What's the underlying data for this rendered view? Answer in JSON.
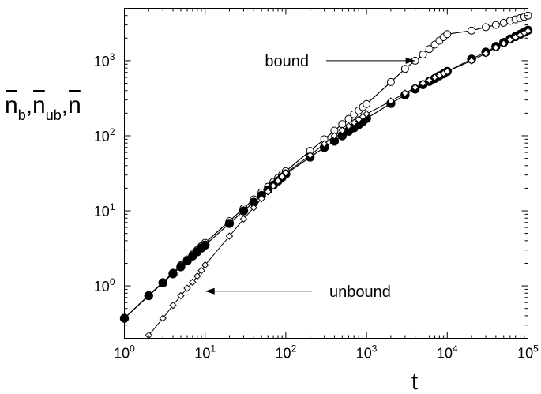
{
  "chart_data": {
    "type": "line",
    "xscale": "log",
    "yscale": "log",
    "xlim": [
      1,
      100000
    ],
    "ylim": [
      0.2,
      5000
    ],
    "xlabel": "t",
    "ylabel_parts": [
      {
        "base": "n",
        "sub": "b"
      },
      {
        "base": "n",
        "sub": "ub"
      },
      {
        "base": "n",
        "sub": ""
      }
    ],
    "ylabel_separator": ",",
    "x_ticks": [
      {
        "value": 1,
        "base": "10",
        "exp": "0"
      },
      {
        "value": 10,
        "base": "10",
        "exp": "1"
      },
      {
        "value": 100,
        "base": "10",
        "exp": "2"
      },
      {
        "value": 1000,
        "base": "10",
        "exp": "3"
      },
      {
        "value": 10000,
        "base": "10",
        "exp": "4"
      },
      {
        "value": 100000,
        "base": "10",
        "exp": "5"
      }
    ],
    "y_ticks": [
      {
        "value": 1,
        "base": "10",
        "exp": "0"
      },
      {
        "value": 10,
        "base": "10",
        "exp": "1"
      },
      {
        "value": 100,
        "base": "10",
        "exp": "2"
      },
      {
        "value": 1000,
        "base": "10",
        "exp": "3"
      }
    ],
    "grid": false,
    "annotations": [
      {
        "text": "bound",
        "x": 55,
        "y": 1000,
        "arrow_x": 4000,
        "arrow_y": 1000
      },
      {
        "text": "unbound",
        "x": 2000,
        "y": 0.85,
        "arrow_x": 10,
        "arrow_y": 0.85
      }
    ],
    "series": [
      {
        "marker": "open-circle",
        "x": [
          1,
          2,
          3,
          4,
          5,
          6,
          7,
          8,
          9,
          10,
          20,
          30,
          40,
          50,
          60,
          70,
          80,
          90,
          100,
          200,
          300,
          400,
          500,
          600,
          700,
          800,
          900,
          1000,
          2000,
          3000,
          4000,
          5000,
          6000,
          7000,
          8000,
          9000,
          10000,
          20000,
          30000,
          40000,
          50000,
          60000,
          70000,
          80000,
          90000,
          100000
        ],
        "y": [
          0.37,
          0.75,
          1.12,
          1.5,
          1.88,
          2.25,
          2.63,
          3.0,
          3.38,
          3.75,
          7.3,
          10.8,
          14.2,
          17.6,
          20.9,
          24.2,
          27.4,
          30.6,
          33.8,
          63,
          90,
          117,
          143,
          168,
          193,
          217,
          241,
          265,
          520,
          780,
          1000,
          1210,
          1430,
          1640,
          1850,
          2060,
          2260,
          2520,
          2800,
          3000,
          3200,
          3400,
          3550,
          3700,
          3850,
          4000
        ]
      },
      {
        "marker": "filled-circle",
        "x": [
          1,
          2,
          3,
          4,
          5,
          6,
          7,
          8,
          9,
          10,
          20,
          30,
          40,
          50,
          60,
          70,
          80,
          90,
          100,
          200,
          300,
          400,
          500,
          600,
          700,
          800,
          900,
          1000,
          2000,
          3000,
          4000,
          5000,
          6000,
          7000,
          8000,
          9000,
          10000,
          20000,
          30000,
          40000,
          50000,
          60000,
          70000,
          80000,
          90000,
          100000
        ],
        "y": [
          0.37,
          0.74,
          1.1,
          1.45,
          1.8,
          2.15,
          2.5,
          2.85,
          3.2,
          3.5,
          6.8,
          10,
          13,
          16,
          19,
          22,
          25,
          28,
          31,
          52,
          70,
          85,
          100,
          115,
          128,
          141,
          155,
          170,
          270,
          350,
          420,
          480,
          530,
          580,
          630,
          670,
          720,
          1050,
          1300,
          1550,
          1750,
          1950,
          2100,
          2250,
          2400,
          2550
        ]
      },
      {
        "marker": "open-diamond",
        "x": [
          2,
          3,
          4,
          5,
          6,
          7,
          8,
          9,
          10,
          20,
          30,
          40,
          50,
          60,
          70,
          80,
          90,
          100,
          200,
          300,
          400,
          500,
          600,
          700,
          800,
          900,
          1000,
          2000,
          3000,
          4000,
          5000,
          6000,
          7000,
          8000,
          9000,
          10000,
          20000,
          30000,
          40000,
          50000,
          60000,
          70000,
          80000,
          90000,
          100000
        ],
        "y": [
          0.22,
          0.37,
          0.55,
          0.74,
          0.93,
          1.12,
          1.35,
          1.6,
          1.9,
          4.6,
          7.8,
          11,
          14.5,
          18,
          21.5,
          25,
          28.5,
          32,
          55,
          78,
          100,
          118,
          135,
          150,
          165,
          180,
          195,
          290,
          370,
          440,
          500,
          550,
          600,
          640,
          680,
          720,
          1000,
          1250,
          1500,
          1700,
          1900,
          2050,
          2200,
          2350,
          2500
        ]
      }
    ]
  }
}
